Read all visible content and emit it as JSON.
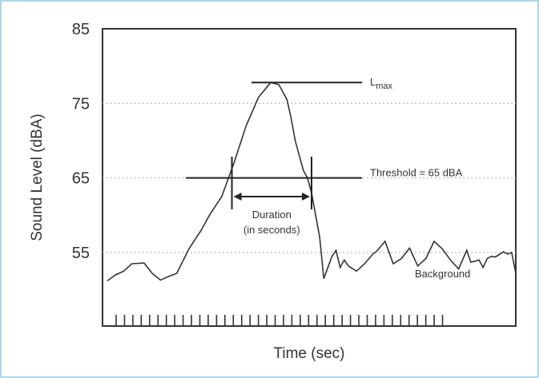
{
  "chart_data": {
    "type": "line",
    "title": "",
    "xlabel": "Time (sec)",
    "ylabel": "Sound Level (dBA)",
    "ylim": [
      49,
      85
    ],
    "yticks": [
      55,
      65,
      75,
      85
    ],
    "grid": true,
    "x_tick_count": 40,
    "series": [
      {
        "name": "",
        "x": [
          0,
          2,
          4,
          6,
          9,
          11,
          13,
          15,
          17,
          20,
          23,
          25,
          28,
          31,
          34,
          37,
          40,
          42,
          44,
          45,
          46,
          47,
          48,
          49,
          50,
          51,
          52,
          53,
          55,
          56,
          57,
          58,
          59,
          61,
          63,
          65,
          66,
          68,
          70,
          72,
          74,
          76,
          78,
          80,
          82,
          84,
          86,
          88,
          89,
          91,
          92,
          93,
          94,
          95,
          97,
          98,
          99,
          100
        ],
        "y": [
          51.2,
          52,
          52.5,
          53.5,
          53.6,
          52.2,
          51.3,
          51.8,
          52.2,
          55.5,
          58,
          60,
          62.5,
          67,
          72,
          75.8,
          77.8,
          77.5,
          75.5,
          73,
          70,
          68,
          66,
          65,
          63,
          60,
          57,
          51.5,
          54.5,
          55.3,
          53,
          54,
          53.2,
          52.5,
          53.5,
          54.8,
          55.2,
          56.5,
          53.5,
          54.2,
          55.6,
          53.2,
          54.2,
          56.5,
          55.5,
          54,
          52.8,
          55.3,
          53.7,
          54,
          53,
          54.2,
          54.5,
          54.4,
          55.1,
          54.8,
          55,
          52.2
        ]
      }
    ],
    "annotations": {
      "lmax_label": "L",
      "lmax_subscript": "max",
      "lmax_level": 77.8,
      "threshold_label": "Threshold = 65 dBA",
      "threshold_level": 65,
      "duration_label_line1": "Duration",
      "duration_label_line2": "(in seconds)",
      "duration_start": 30.5,
      "duration_end": 50,
      "background_label": "Background"
    }
  }
}
